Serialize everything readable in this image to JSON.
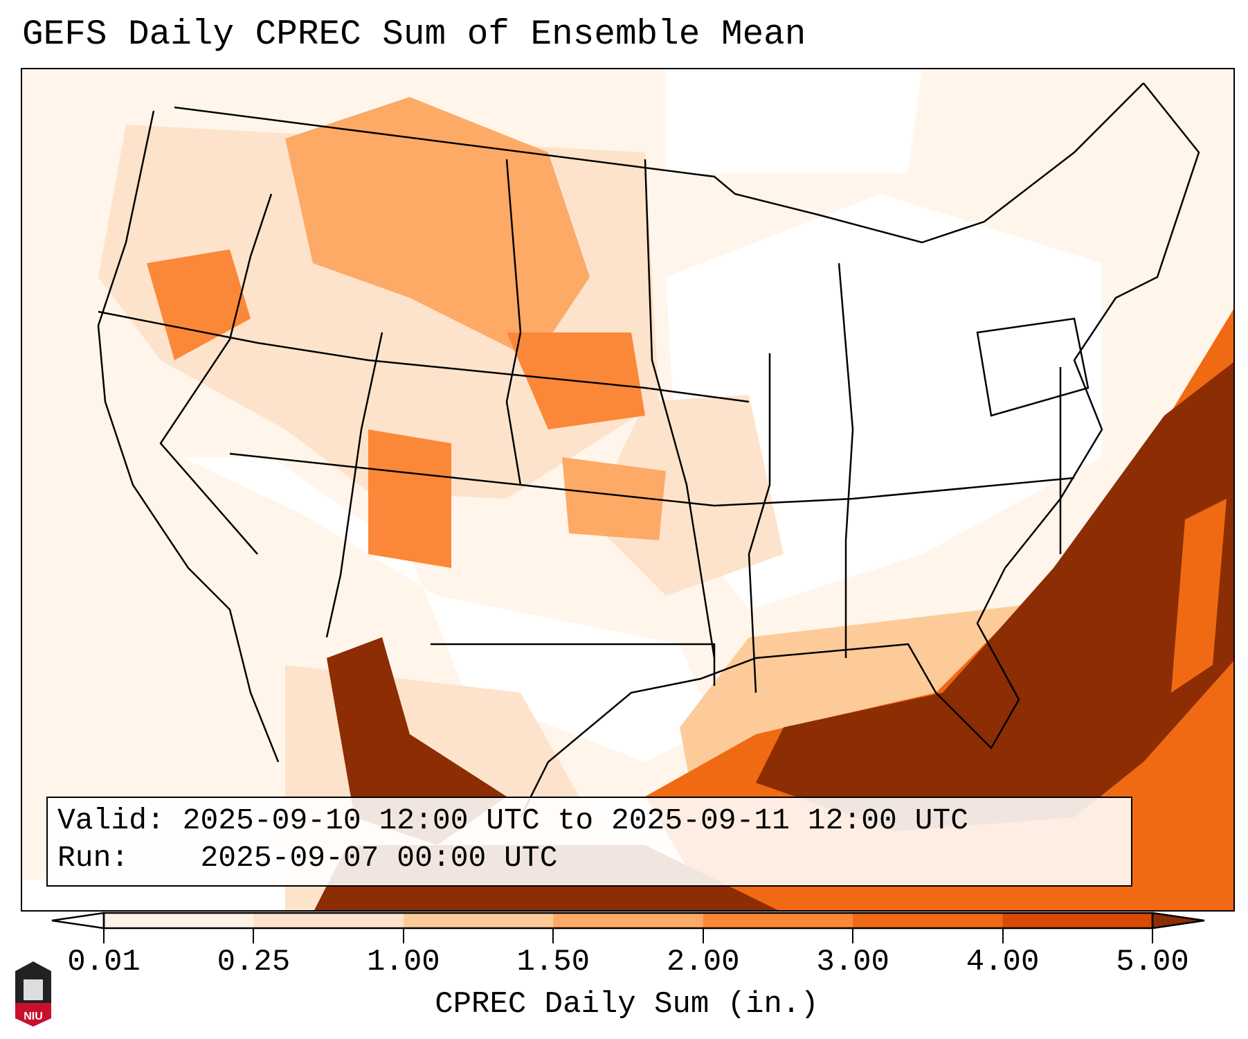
{
  "title": "GEFS Daily CPREC Sum of Ensemble Mean",
  "info": {
    "valid_label": "Valid:",
    "valid_value": "2025-09-10 12:00 UTC to 2025-09-11 12:00 UTC",
    "run_label": "Run:",
    "run_value": "2025-09-07 00:00 UTC"
  },
  "colorbar": {
    "label": "CPREC Daily Sum (in.)",
    "ticks": [
      "0.01",
      "0.25",
      "1.00",
      "1.50",
      "2.00",
      "3.00",
      "4.00",
      "5.00"
    ],
    "colors": [
      "#fff2e6",
      "#fde3cb",
      "#fdcb99",
      "#fdaa66",
      "#fb8838",
      "#f06a14",
      "#d94a04"
    ],
    "under_color": "#ffffff",
    "over_color": "#8c2d04",
    "extend": "both"
  },
  "logo_text": "NIU"
}
